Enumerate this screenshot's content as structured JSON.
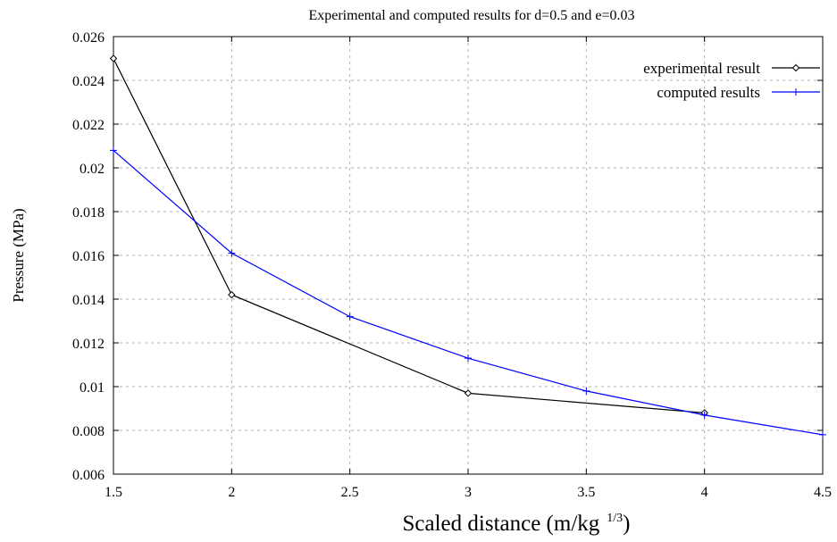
{
  "chart_data": {
    "type": "line",
    "title": "Experimental and computed results for d=0.5 and e=0.03",
    "xlabel": "Scaled distance (m/kg",
    "xlabel_superscript": "1/3",
    "xlabel_suffix": ")",
    "ylabel": "Pressure (MPa)",
    "xlim": [
      1.5,
      4.5
    ],
    "ylim": [
      0.006,
      0.026
    ],
    "x_ticks": [
      "1.5",
      "2",
      "2.5",
      "3",
      "3.5",
      "4",
      "4.5"
    ],
    "y_ticks": [
      "0.006",
      "0.008",
      "0.01",
      "0.012",
      "0.014",
      "0.016",
      "0.018",
      "0.02",
      "0.022",
      "0.024",
      "0.026"
    ],
    "grid": true,
    "legend_position": "top-right",
    "series": [
      {
        "name": "experimental result",
        "color": "#000000",
        "marker": "diamond",
        "x": [
          1.5,
          2,
          3,
          4
        ],
        "y": [
          0.025,
          0.0142,
          0.0097,
          0.0088
        ]
      },
      {
        "name": "computed results",
        "color": "#0000ff",
        "marker": "plus",
        "x": [
          1.5,
          2,
          2.5,
          3,
          3.5,
          4,
          4.5
        ],
        "y": [
          0.0208,
          0.0161,
          0.0132,
          0.0113,
          0.0098,
          0.0087,
          0.0078
        ]
      }
    ]
  }
}
